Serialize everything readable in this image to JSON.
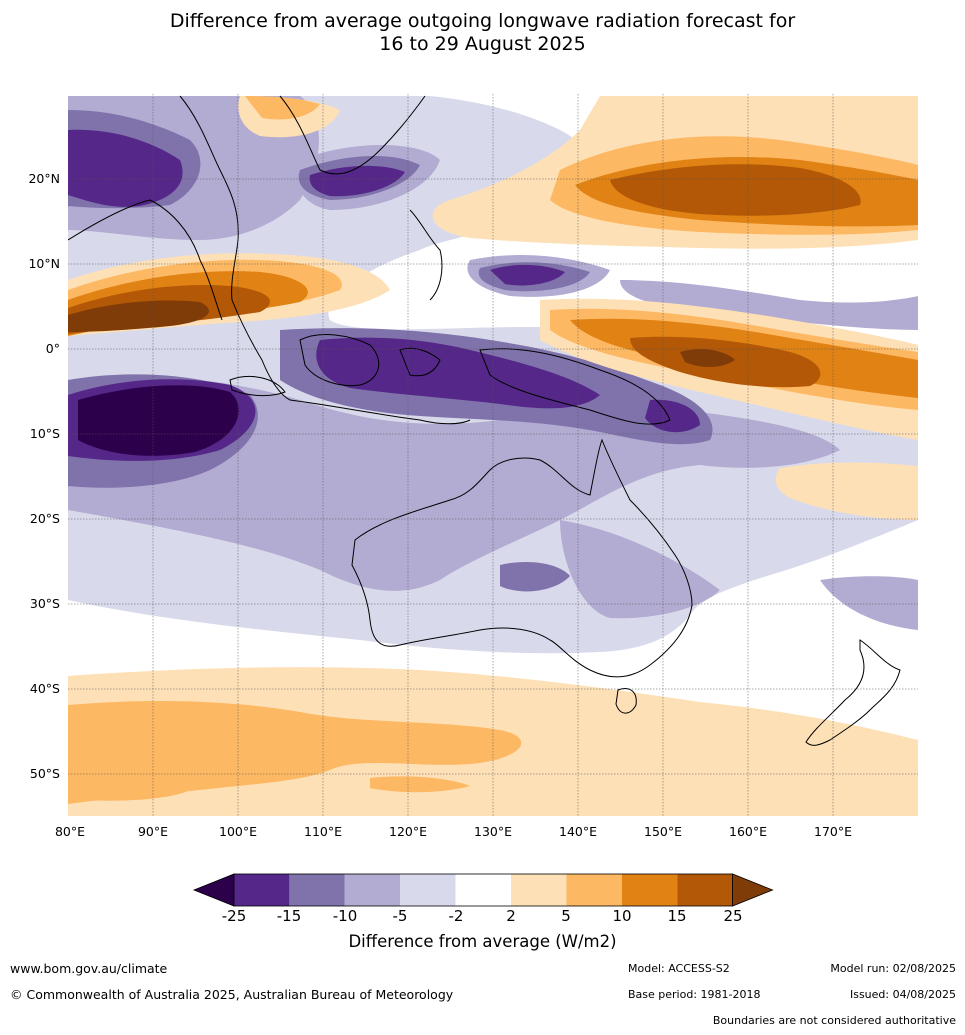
{
  "title_line1": "Difference from average outgoing longwave radiation forecast for",
  "title_line2": "16 to 29 August 2025",
  "map": {
    "lon_labels": [
      "80°E",
      "90°E",
      "100°E",
      "110°E",
      "120°E",
      "130°E",
      "140°E",
      "150°E",
      "160°E",
      "170°E"
    ],
    "lat_labels": [
      "20°N",
      "10°N",
      "0°",
      "10°S",
      "20°S",
      "30°S",
      "40°S",
      "50°S"
    ],
    "lon_range": [
      80,
      180
    ],
    "lat_range": [
      -55,
      30
    ]
  },
  "colorbar": {
    "title": "Difference from average (W/m2)",
    "ticks": [
      "-25",
      "-15",
      "-10",
      "-5",
      "-2",
      "2",
      "5",
      "10",
      "15",
      "25"
    ],
    "colors": [
      "#2d004b",
      "#542788",
      "#8073ac",
      "#b2abd2",
      "#d8daeb",
      "#ffffff",
      "#fee0b6",
      "#fdb863",
      "#e08214",
      "#b35806",
      "#7f3b08"
    ]
  },
  "footer": {
    "website": "www.bom.gov.au/climate",
    "copyright": "© Commonwealth of Australia 2025, Australian Bureau of Meteorology",
    "model": "Model: ACCESS-S2",
    "base_period": "Base period: 1981-2018",
    "model_run": "Model run: 02/08/2025",
    "issued": "Issued: 04/08/2025",
    "disclaimer": "Boundaries are not considered authoritative"
  }
}
